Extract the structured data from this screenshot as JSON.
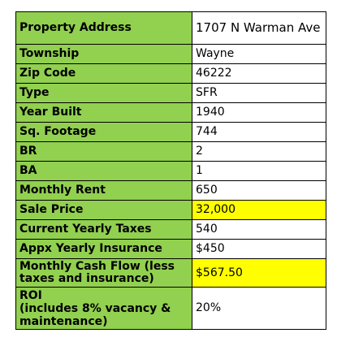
{
  "rows": [
    {
      "label": "Property Address",
      "value": "1707 N Warman Ave"
    },
    {
      "label": "Township",
      "value": "Wayne"
    },
    {
      "label": "Zip Code",
      "value": "46222"
    },
    {
      "label": "Type",
      "value": "SFR"
    },
    {
      "label": "Year Built",
      "value": "1940"
    },
    {
      "label": "Sq. Footage",
      "value": "744"
    },
    {
      "label": "BR",
      "value": "2"
    },
    {
      "label": "BA",
      "value": "1"
    },
    {
      "label": "Monthly Rent",
      "value": "650"
    },
    {
      "label": "Sale Price",
      "value": "32,000"
    },
    {
      "label": "Current Yearly Taxes",
      "value": "540"
    },
    {
      "label": "Appx Yearly Insurance",
      "value": "$450"
    },
    {
      "label_line1": "Monthly Cash Flow (less",
      "label_line2": "taxes and insurance)",
      "value": "$567.50"
    },
    {
      "label_line1": "ROI",
      "label_line2": "(includes 8% vacancy &",
      "label_line3": "maintenance)",
      "value": "20%"
    }
  ],
  "colors": {
    "label_background": "#92d050",
    "highlight_background": "#ffff00",
    "value_background": "#ffffff",
    "border": "#000000"
  }
}
